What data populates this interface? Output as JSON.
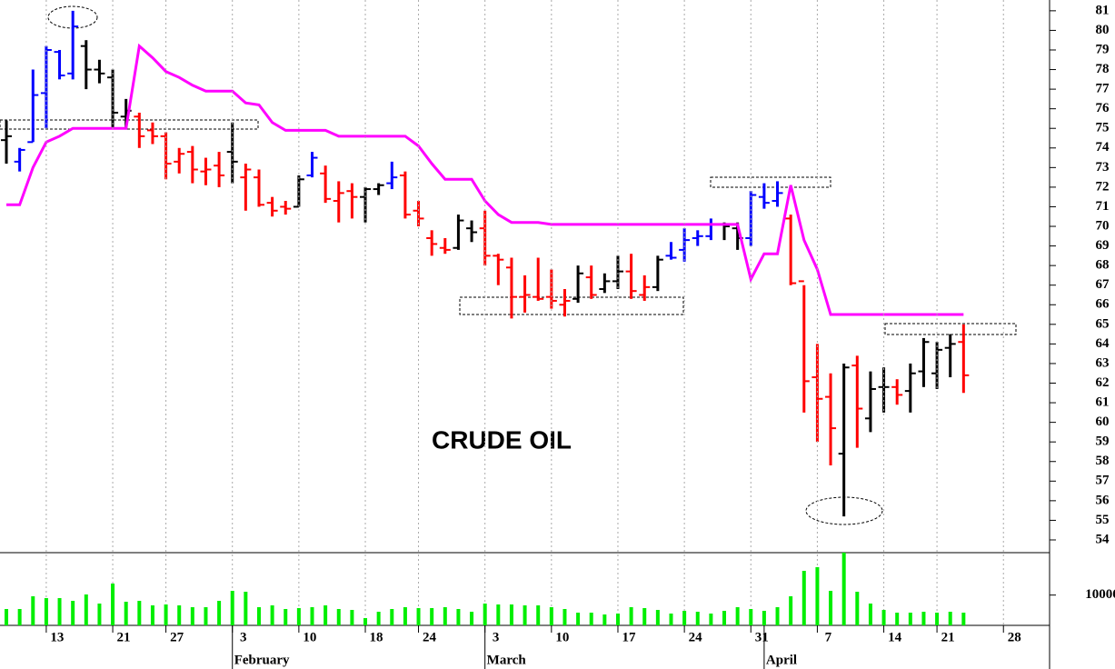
{
  "chart_data": [
    {
      "type": "ohlc",
      "title": "CRUDE OIL",
      "x": [
        0,
        1,
        2,
        3,
        4,
        5,
        6,
        7,
        8,
        9,
        10,
        11,
        12,
        13,
        14,
        15,
        16,
        17,
        18,
        19,
        20,
        21,
        22,
        23,
        24,
        25,
        26,
        27,
        28,
        29,
        30,
        31,
        32,
        33,
        34,
        35,
        36,
        37,
        38,
        39,
        40,
        41,
        42,
        43,
        44,
        45,
        46,
        47,
        48,
        49,
        50,
        51,
        52,
        53,
        54,
        55,
        56,
        57,
        58,
        59,
        60,
        61,
        62,
        63,
        64,
        65,
        66,
        67,
        68,
        69,
        70,
        71,
        72
      ],
      "xlim": [
        -0.48,
        78.47
      ],
      "open": [
        74.4,
        73.3,
        74.3,
        76.8,
        78.9,
        77.8,
        79.2,
        78.0,
        77.6,
        75.6,
        75.6,
        74.9,
        74.6,
        73.3,
        73.8,
        72.8,
        73.1,
        73.8,
        72.5,
        72.5,
        71.2,
        71.0,
        71.0,
        72.6,
        72.7,
        71.3,
        71.8,
        71.5,
        71.9,
        72.2,
        72.6,
        70.8,
        69.4,
        68.9,
        68.9,
        69.9,
        69.9,
        68.5,
        67.9,
        66.4,
        66.4,
        66.4,
        66.0,
        66.3,
        67.4,
        66.8,
        67.2,
        67.7,
        66.5,
        66.9,
        68.5,
        68.8,
        69.4,
        69.5,
        70.1,
        69.9,
        69.4,
        71.5,
        71.3,
        70.4,
        67.2,
        62.3,
        61.3,
        58.4,
        62.9,
        60.2,
        61.8,
        61.8,
        61.6,
        62.6,
        62.5,
        63.8,
        64.1
      ],
      "high": [
        75.4,
        74.0,
        78.0,
        79.2,
        79.0,
        81.0,
        79.5,
        78.5,
        78.0,
        76.5,
        75.8,
        75.3,
        74.8,
        74.0,
        74.1,
        73.5,
        73.8,
        75.3,
        73.2,
        72.9,
        71.5,
        71.3,
        72.6,
        73.8,
        73.1,
        72.3,
        72.2,
        72.0,
        72.2,
        73.3,
        72.8,
        71.3,
        69.8,
        69.4,
        70.6,
        70.3,
        70.8,
        68.6,
        68.4,
        67.5,
        68.4,
        67.8,
        66.8,
        68.0,
        68.0,
        67.6,
        68.5,
        68.6,
        67.5,
        68.5,
        69.2,
        69.9,
        69.8,
        70.4,
        70.2,
        70.2,
        71.8,
        72.2,
        72.3,
        70.6,
        67.0,
        64.0,
        62.5,
        63.0,
        63.4,
        62.6,
        62.8,
        62.2,
        63.0,
        64.3,
        64.1,
        64.5,
        65.0
      ],
      "low": [
        73.2,
        72.8,
        74.3,
        75.0,
        77.5,
        77.5,
        77.0,
        77.3,
        75.0,
        75.0,
        74.0,
        74.2,
        72.4,
        72.7,
        72.2,
        72.1,
        72.0,
        72.2,
        70.8,
        71.0,
        70.5,
        70.6,
        71.0,
        72.5,
        71.2,
        70.2,
        70.4,
        70.2,
        71.6,
        71.9,
        70.4,
        70.0,
        68.5,
        68.6,
        68.8,
        69.2,
        68.0,
        67.0,
        65.3,
        65.6,
        66.2,
        65.8,
        65.4,
        66.1,
        66.3,
        66.6,
        66.8,
        66.3,
        66.2,
        66.7,
        68.3,
        68.2,
        69.0,
        69.3,
        69.3,
        68.8,
        69.0,
        70.9,
        71.0,
        67.0,
        60.5,
        59.0,
        57.8,
        55.2,
        58.7,
        59.5,
        60.5,
        60.9,
        60.5,
        61.8,
        61.7,
        62.3,
        61.5
      ],
      "close": [
        74.6,
        73.9,
        76.7,
        79.0,
        77.7,
        80.2,
        78.0,
        77.8,
        75.8,
        75.9,
        74.6,
        74.6,
        73.2,
        73.7,
        72.9,
        72.9,
        72.6,
        73.3,
        72.9,
        71.1,
        70.8,
        70.9,
        72.4,
        73.5,
        71.4,
        71.7,
        71.5,
        71.9,
        72.1,
        72.5,
        70.6,
        70.4,
        69.1,
        68.8,
        70.3,
        69.7,
        68.5,
        68.3,
        66.4,
        66.5,
        66.3,
        66.2,
        66.2,
        67.6,
        66.5,
        67.2,
        67.7,
        66.7,
        66.9,
        68.3,
        68.4,
        69.3,
        69.5,
        70.1,
        70.0,
        69.4,
        71.6,
        71.2,
        71.7,
        67.1,
        62.1,
        61.2,
        59.7,
        62.8,
        60.7,
        61.7,
        61.8,
        61.4,
        62.5,
        64.1,
        63.7,
        64.0,
        62.4
      ],
      "colors": [
        "black",
        "blue",
        "blue",
        "blue",
        "blue",
        "blue",
        "black",
        "black",
        "black",
        "black",
        "red",
        "red",
        "red",
        "red",
        "red",
        "red",
        "red",
        "black",
        "red",
        "red",
        "red",
        "red",
        "black",
        "blue",
        "red",
        "red",
        "red",
        "black",
        "black",
        "blue",
        "red",
        "red",
        "red",
        "red",
        "black",
        "black",
        "red",
        "red",
        "red",
        "red",
        "red",
        "red",
        "red",
        "black",
        "red",
        "black",
        "black",
        "red",
        "red",
        "black",
        "blue",
        "blue",
        "blue",
        "blue",
        "black",
        "black",
        "blue",
        "blue",
        "blue",
        "red",
        "red",
        "red",
        "red",
        "black",
        "red",
        "black",
        "black",
        "red",
        "black",
        "black",
        "black",
        "black",
        "red"
      ],
      "stop_line": {
        "color": "#ff00ff",
        "values": [
          71.1,
          71.1,
          73.0,
          74.3,
          74.6,
          75.0,
          75.0,
          75.0,
          75.0,
          75.0,
          79.2,
          78.6,
          77.9,
          77.6,
          77.2,
          76.9,
          76.9,
          76.9,
          76.3,
          76.2,
          75.3,
          74.9,
          74.9,
          74.9,
          74.9,
          74.6,
          74.6,
          74.6,
          74.6,
          74.6,
          74.6,
          74.1,
          73.2,
          72.4,
          72.4,
          72.4,
          71.3,
          70.6,
          70.2,
          70.2,
          70.2,
          70.1,
          70.1,
          70.1,
          70.1,
          70.1,
          70.1,
          70.1,
          70.1,
          70.1,
          70.1,
          70.1,
          70.1,
          70.1,
          70.1,
          70.1,
          67.3,
          68.6,
          68.6,
          72.1,
          69.3,
          67.8,
          65.5,
          65.5,
          65.5,
          65.5,
          65.5,
          65.5,
          65.5,
          65.5,
          65.5,
          65.5,
          65.5
        ]
      },
      "ylim": [
        53.35,
        81.55
      ],
      "yticks": [
        54,
        55,
        56,
        57,
        58,
        59,
        60,
        61,
        62,
        63,
        64,
        65,
        66,
        67,
        68,
        69,
        70,
        71,
        72,
        73,
        74,
        75,
        76,
        77,
        78,
        79,
        80,
        81
      ]
    },
    {
      "type": "bar",
      "color": "#00ee00",
      "x": [
        0,
        1,
        2,
        3,
        4,
        5,
        6,
        7,
        8,
        9,
        10,
        11,
        12,
        13,
        14,
        15,
        16,
        17,
        18,
        19,
        20,
        21,
        22,
        23,
        24,
        25,
        26,
        27,
        28,
        29,
        30,
        31,
        32,
        33,
        34,
        35,
        36,
        37,
        38,
        39,
        40,
        41,
        42,
        43,
        44,
        45,
        46,
        47,
        48,
        49,
        50,
        51,
        52,
        53,
        54,
        55,
        56,
        57,
        58,
        59,
        60,
        61,
        62,
        63,
        64,
        65,
        66,
        67,
        68,
        69,
        70,
        71,
        72
      ],
      "values": [
        5400,
        5400,
        9600,
        9000,
        9000,
        8100,
        10200,
        7200,
        13800,
        7800,
        8100,
        6600,
        6900,
        6600,
        6000,
        6000,
        8100,
        11400,
        11100,
        6000,
        6600,
        5400,
        5700,
        6000,
        6600,
        5400,
        5100,
        2400,
        4500,
        5400,
        6000,
        5700,
        5700,
        6000,
        5400,
        4500,
        7200,
        6900,
        6900,
        6600,
        6600,
        6000,
        5400,
        4200,
        4200,
        3600,
        3900,
        6000,
        5700,
        5100,
        3900,
        4800,
        4500,
        3900,
        4800,
        6000,
        5400,
        4800,
        6000,
        9600,
        18000,
        19200,
        11400,
        24000,
        11100,
        7200,
        5100,
        4200,
        4200,
        4500,
        4200,
        4500,
        4200
      ],
      "xlim": [
        -0.48,
        78.47
      ],
      "ylim": [
        0,
        24000
      ],
      "yticks": [
        10000
      ],
      "xticks": [
        {
          "value": 3,
          "label": "13"
        },
        {
          "value": 8,
          "label": "21"
        },
        {
          "value": 12,
          "label": "27"
        },
        {
          "value": 17,
          "label": "3"
        },
        {
          "value": 22,
          "label": "10"
        },
        {
          "value": 27,
          "label": "18"
        },
        {
          "value": 31,
          "label": "24"
        },
        {
          "value": 36,
          "label": "3"
        },
        {
          "value": 41,
          "label": "10"
        },
        {
          "value": 46,
          "label": "17"
        },
        {
          "value": 51,
          "label": "24"
        },
        {
          "value": 56,
          "label": "31"
        },
        {
          "value": 61,
          "label": "7"
        },
        {
          "value": 66,
          "label": "14"
        },
        {
          "value": 70,
          "label": "21"
        },
        {
          "value": 75,
          "label": "28"
        }
      ],
      "month_ticks": [
        {
          "value": 17,
          "label": "February"
        },
        {
          "value": 36,
          "label": "March"
        },
        {
          "value": 57,
          "label": "April"
        }
      ]
    }
  ]
}
